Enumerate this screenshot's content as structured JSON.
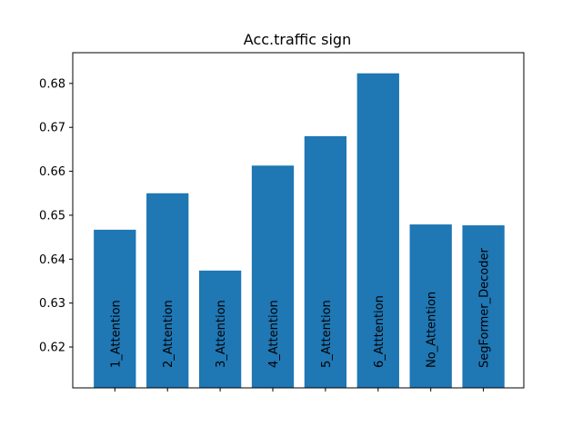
{
  "chart_data": {
    "type": "bar",
    "title": "Acc.traffic sign",
    "xlabel": "",
    "ylabel": "",
    "categories": [
      "1_Attention",
      "2_Attention",
      "3_Attention",
      "4_Attention",
      "5_Attention",
      "6_Atttention",
      "No_Attention",
      "SegFormer_Decoder"
    ],
    "values": [
      0.6467,
      0.655,
      0.6374,
      0.6613,
      0.668,
      0.6823,
      0.6479,
      0.6477
    ],
    "ylim": [
      0.6107,
      0.687
    ],
    "yticks": [
      0.62,
      0.63,
      0.64,
      0.65,
      0.66,
      0.67,
      0.68
    ],
    "ytick_labels": [
      "0.62",
      "0.63",
      "0.64",
      "0.65",
      "0.66",
      "0.67",
      "0.68"
    ],
    "bar_color": "#1f77b4",
    "grid": false,
    "labels_inside_bars": true
  }
}
